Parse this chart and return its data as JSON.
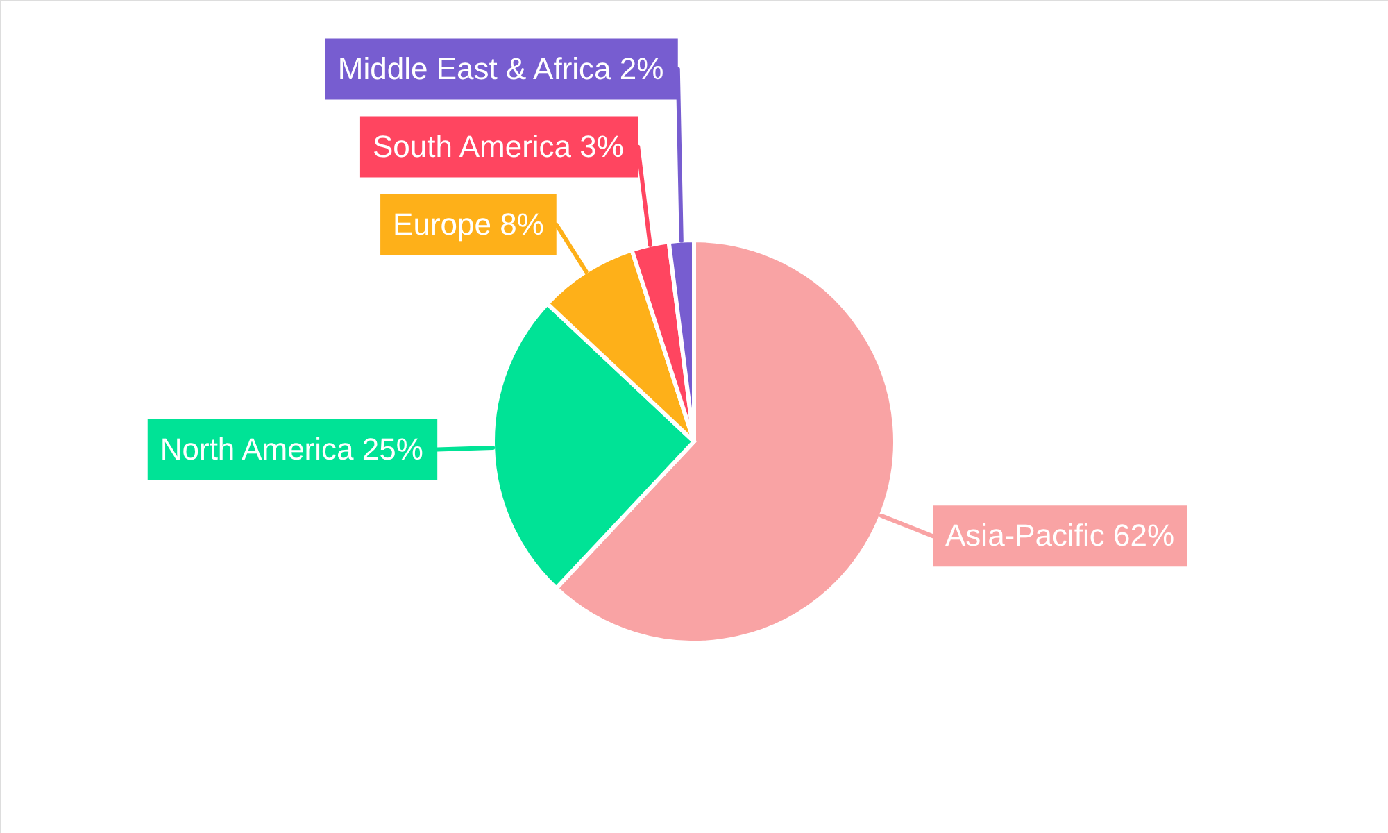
{
  "chart_data": {
    "type": "pie",
    "categories": [
      "Asia-Pacific",
      "North America",
      "Europe",
      "South America",
      "Middle East & Africa"
    ],
    "values": [
      62,
      25,
      8,
      3,
      2
    ],
    "value_labels": [
      "62%",
      "25%",
      "8%",
      "3%",
      "2%"
    ],
    "colors": [
      "#f9a3a4",
      "#00e396",
      "#feb019",
      "#ff4560",
      "#775dd0"
    ]
  }
}
